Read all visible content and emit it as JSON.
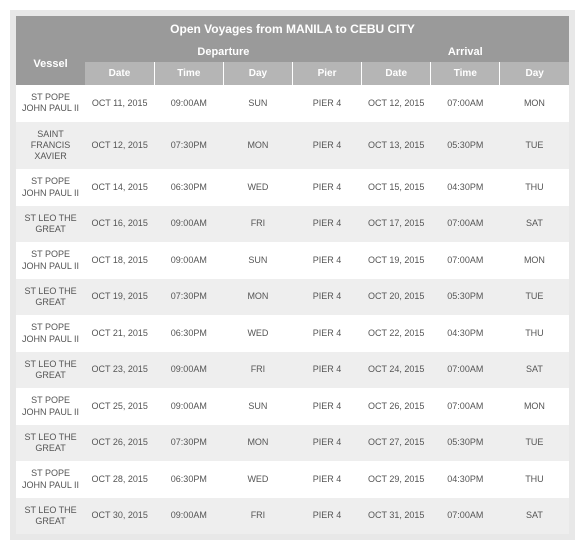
{
  "title": "Open Voyages from MANILA to CEBU CITY",
  "groups": {
    "departure": "Departure",
    "arrival": "Arrival"
  },
  "columns": {
    "vessel": "Vessel",
    "dep_date": "Date",
    "dep_time": "Time",
    "dep_day": "Day",
    "dep_pier": "Pier",
    "arr_date": "Date",
    "arr_time": "Time",
    "arr_day": "Day"
  },
  "styling": {
    "title_bg": "#9a9a9a",
    "title_color": "#ffffff",
    "colhead_bg": "#b5b5b5",
    "row_odd_bg": "#ffffff",
    "row_even_bg": "#eeeeee",
    "text_color": "#555555",
    "outer_bg": "#e8e8e8",
    "font_family": "Arial",
    "title_fontsize": 12,
    "body_fontsize": 9
  },
  "rows": [
    {
      "vessel": "ST POPE JOHN PAUL II",
      "dep_date": "OCT 11, 2015",
      "dep_time": "09:00AM",
      "dep_day": "SUN",
      "dep_pier": "PIER 4",
      "arr_date": "OCT 12, 2015",
      "arr_time": "07:00AM",
      "arr_day": "MON"
    },
    {
      "vessel": "SAINT FRANCIS XAVIER",
      "dep_date": "OCT 12, 2015",
      "dep_time": "07:30PM",
      "dep_day": "MON",
      "dep_pier": "PIER 4",
      "arr_date": "OCT 13, 2015",
      "arr_time": "05:30PM",
      "arr_day": "TUE"
    },
    {
      "vessel": "ST POPE JOHN PAUL II",
      "dep_date": "OCT 14, 2015",
      "dep_time": "06:30PM",
      "dep_day": "WED",
      "dep_pier": "PIER 4",
      "arr_date": "OCT 15, 2015",
      "arr_time": "04:30PM",
      "arr_day": "THU"
    },
    {
      "vessel": "ST LEO THE GREAT",
      "dep_date": "OCT 16, 2015",
      "dep_time": "09:00AM",
      "dep_day": "FRI",
      "dep_pier": "PIER 4",
      "arr_date": "OCT 17, 2015",
      "arr_time": "07:00AM",
      "arr_day": "SAT"
    },
    {
      "vessel": "ST POPE JOHN PAUL II",
      "dep_date": "OCT 18, 2015",
      "dep_time": "09:00AM",
      "dep_day": "SUN",
      "dep_pier": "PIER 4",
      "arr_date": "OCT 19, 2015",
      "arr_time": "07:00AM",
      "arr_day": "MON"
    },
    {
      "vessel": "ST LEO THE GREAT",
      "dep_date": "OCT 19, 2015",
      "dep_time": "07:30PM",
      "dep_day": "MON",
      "dep_pier": "PIER 4",
      "arr_date": "OCT 20, 2015",
      "arr_time": "05:30PM",
      "arr_day": "TUE"
    },
    {
      "vessel": "ST POPE JOHN PAUL II",
      "dep_date": "OCT 21, 2015",
      "dep_time": "06:30PM",
      "dep_day": "WED",
      "dep_pier": "PIER 4",
      "arr_date": "OCT 22, 2015",
      "arr_time": "04:30PM",
      "arr_day": "THU"
    },
    {
      "vessel": "ST LEO THE GREAT",
      "dep_date": "OCT 23, 2015",
      "dep_time": "09:00AM",
      "dep_day": "FRI",
      "dep_pier": "PIER 4",
      "arr_date": "OCT 24, 2015",
      "arr_time": "07:00AM",
      "arr_day": "SAT"
    },
    {
      "vessel": "ST POPE JOHN PAUL II",
      "dep_date": "OCT 25, 2015",
      "dep_time": "09:00AM",
      "dep_day": "SUN",
      "dep_pier": "PIER 4",
      "arr_date": "OCT 26, 2015",
      "arr_time": "07:00AM",
      "arr_day": "MON"
    },
    {
      "vessel": "ST LEO THE GREAT",
      "dep_date": "OCT 26, 2015",
      "dep_time": "07:30PM",
      "dep_day": "MON",
      "dep_pier": "PIER 4",
      "arr_date": "OCT 27, 2015",
      "arr_time": "05:30PM",
      "arr_day": "TUE"
    },
    {
      "vessel": "ST POPE JOHN PAUL II",
      "dep_date": "OCT 28, 2015",
      "dep_time": "06:30PM",
      "dep_day": "WED",
      "dep_pier": "PIER 4",
      "arr_date": "OCT 29, 2015",
      "arr_time": "04:30PM",
      "arr_day": "THU"
    },
    {
      "vessel": "ST LEO THE GREAT",
      "dep_date": "OCT 30, 2015",
      "dep_time": "09:00AM",
      "dep_day": "FRI",
      "dep_pier": "PIER 4",
      "arr_date": "OCT 31, 2015",
      "arr_time": "07:00AM",
      "arr_day": "SAT"
    }
  ]
}
